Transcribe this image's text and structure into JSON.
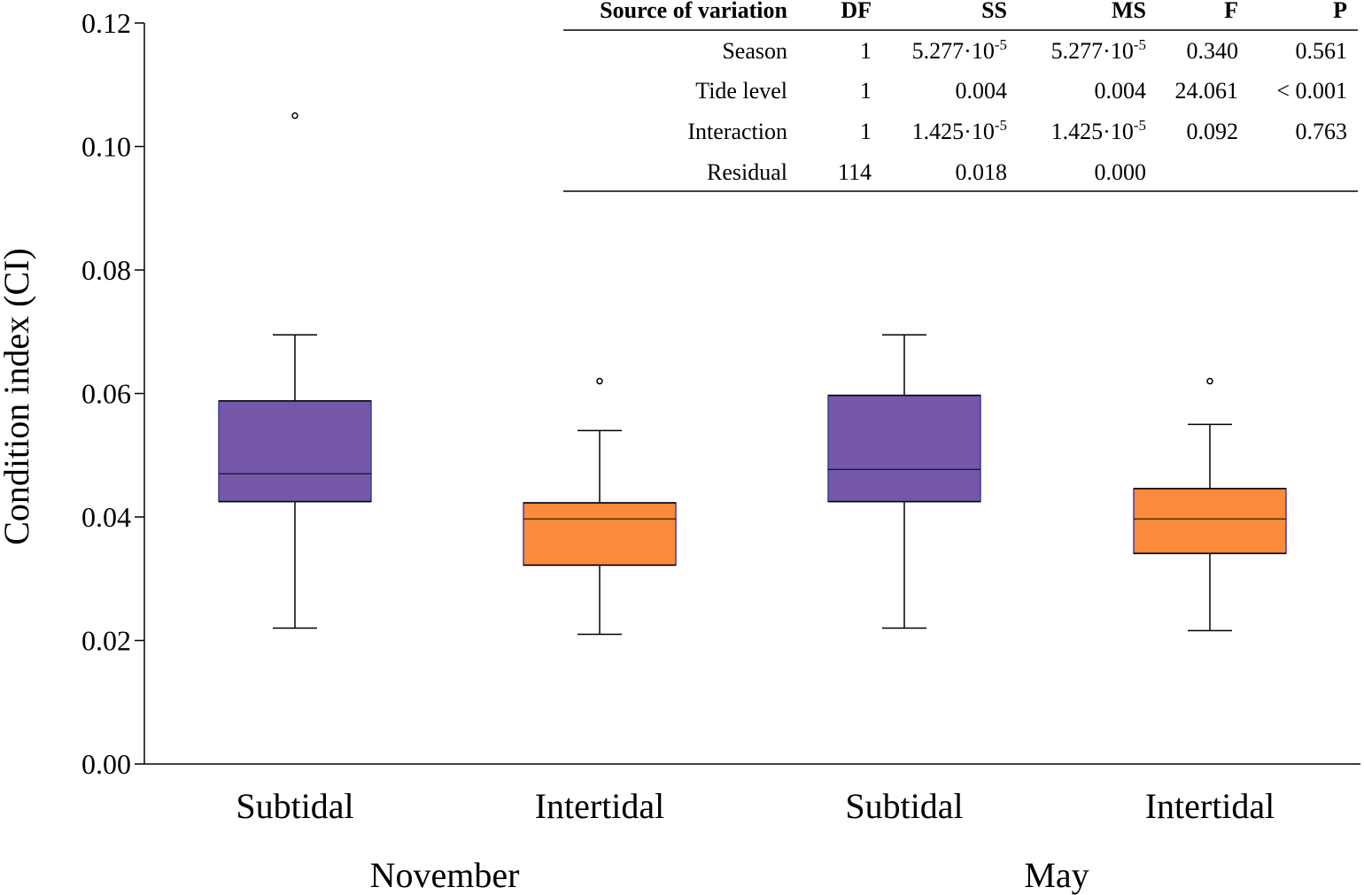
{
  "chart_data": {
    "type": "box",
    "ylabel": "Condition index (CI)",
    "ylim": [
      0.0,
      0.12
    ],
    "yticks": [
      "0.00",
      "0.02",
      "0.04",
      "0.06",
      "0.08",
      "0.10",
      "0.12"
    ],
    "ytick_values": [
      0.0,
      0.02,
      0.04,
      0.06,
      0.08,
      0.1,
      0.12
    ],
    "groups": [
      "November",
      "May"
    ],
    "categories": [
      "Subtidal",
      "Intertidal",
      "Subtidal",
      "Intertidal"
    ],
    "colors": {
      "Subtidal": "#7457a8",
      "Intertidal": "#fd8b3c",
      "box_edge": "#3b3f9a"
    },
    "boxes": [
      {
        "group": "November",
        "category": "Subtidal",
        "whisker_low": 0.022,
        "q1": 0.0425,
        "median": 0.047,
        "q3": 0.0588,
        "whisker_high": 0.0695,
        "outliers": [
          0.105
        ]
      },
      {
        "group": "November",
        "category": "Intertidal",
        "whisker_low": 0.021,
        "q1": 0.0322,
        "median": 0.0397,
        "q3": 0.0423,
        "whisker_high": 0.054,
        "outliers": [
          0.062
        ]
      },
      {
        "group": "May",
        "category": "Subtidal",
        "whisker_low": 0.022,
        "q1": 0.0425,
        "median": 0.0477,
        "q3": 0.0597,
        "whisker_high": 0.0695,
        "outliers": []
      },
      {
        "group": "May",
        "category": "Intertidal",
        "whisker_low": 0.0216,
        "q1": 0.0341,
        "median": 0.0397,
        "q3": 0.0446,
        "whisker_high": 0.055,
        "outliers": [
          0.062
        ]
      }
    ],
    "anova_table": {
      "headers": [
        "Source of variation",
        "DF",
        "SS",
        "MS",
        "F",
        "P"
      ],
      "rows": [
        {
          "source": "Season",
          "df": "1",
          "ss_base": "5.277·10",
          "ss_exp": "-5",
          "ms_base": "5.277·10",
          "ms_exp": "-5",
          "f": "0.340",
          "p": "0.561"
        },
        {
          "source": "Tide level",
          "df": "1",
          "ss_base": "0.004",
          "ss_exp": "",
          "ms_base": "0.004",
          "ms_exp": "",
          "f": "24.061",
          "p": "< 0.001"
        },
        {
          "source": "Interaction",
          "df": "1",
          "ss_base": "1.425·10",
          "ss_exp": "-5",
          "ms_base": "1.425·10",
          "ms_exp": "-5",
          "f": "0.092",
          "p": "0.763"
        },
        {
          "source": "Residual",
          "df": "114",
          "ss_base": "0.018",
          "ss_exp": "",
          "ms_base": "0.000",
          "ms_exp": "",
          "f": "",
          "p": ""
        }
      ]
    }
  }
}
